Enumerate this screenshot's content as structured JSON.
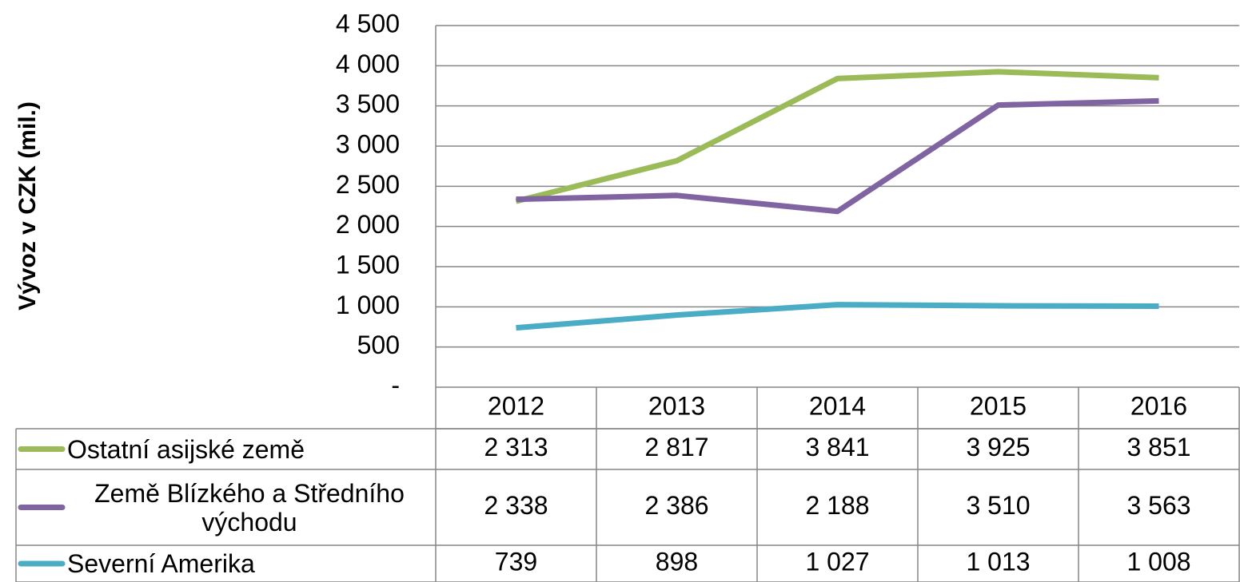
{
  "chart_data": {
    "type": "line",
    "ylabel": "Vývoz v CZK (mil.)",
    "categories": [
      "2012",
      "2013",
      "2014",
      "2015",
      "2016"
    ],
    "series": [
      {
        "name": "Ostatní asijské země",
        "color": "#9bbb59",
        "values": [
          2313,
          2817,
          3841,
          3925,
          3851
        ],
        "value_labels": [
          "2 313",
          "2 817",
          "3 841",
          "3 925",
          "3 851"
        ]
      },
      {
        "name": "Země Blízkého a Středního východu",
        "color": "#8064a2",
        "values": [
          2338,
          2386,
          2188,
          3510,
          3563
        ],
        "value_labels": [
          "2 338",
          "2 386",
          "2 188",
          "3 510",
          "3 563"
        ]
      },
      {
        "name": "Severní Amerika",
        "color": "#4bacc6",
        "values": [
          739,
          898,
          1027,
          1013,
          1008
        ],
        "value_labels": [
          "739",
          "898",
          "1 027",
          "1 013",
          "1 008"
        ]
      }
    ],
    "ylim": [
      0,
      4500
    ],
    "yticks": [
      {
        "value": 0,
        "label": "-"
      },
      500,
      {
        "value": 1000,
        "label": "1 000"
      },
      {
        "value": 1500,
        "label": "1 500"
      },
      {
        "value": 2000,
        "label": "2 000"
      },
      {
        "value": 2500,
        "label": "2 500"
      },
      {
        "value": 3000,
        "label": "3 000"
      },
      {
        "value": 3500,
        "label": "3 500"
      },
      {
        "value": 4000,
        "label": "4 000"
      },
      {
        "value": 4500,
        "label": "4 500"
      }
    ],
    "grid": true
  }
}
